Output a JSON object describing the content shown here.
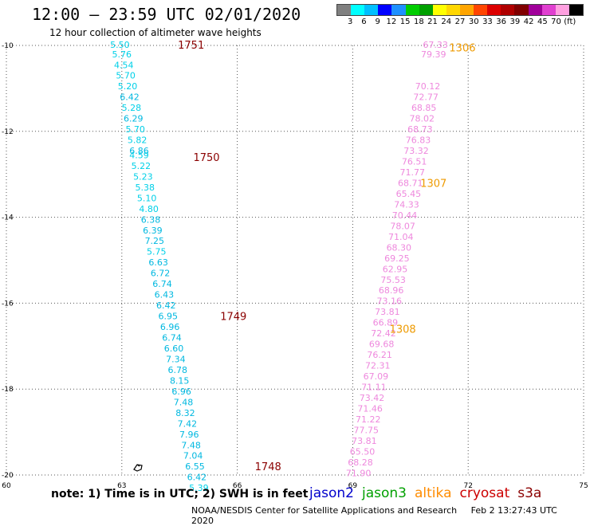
{
  "title": "12:00 — 23:59 UTC 02/01/2020",
  "subtitle": "12 hour collection of altimeter wave heights",
  "legend": {
    "colors": [
      "#808080",
      "#00ffff",
      "#00bfff",
      "#0000ff",
      "#1e90ff",
      "#00cd00",
      "#00a000",
      "#ffff00",
      "#ffd700",
      "#ffa500",
      "#ff4500",
      "#dc0000",
      "#b00000",
      "#800000",
      "#a0009a",
      "#e040d0",
      "#ffa0e0",
      "#000000"
    ],
    "labels": [
      "3",
      "6",
      "9",
      "12",
      "15",
      "18",
      "21",
      "24",
      "27",
      "30",
      "33",
      "36",
      "39",
      "42",
      "45",
      "70",
      "(ft)"
    ]
  },
  "note": "note: 1) Time is in UTC; 2) SWH is in feet",
  "missions": [
    {
      "name": "jason2",
      "color": "#0000cc"
    },
    {
      "name": "jason3",
      "color": "#00a000"
    },
    {
      "name": "altika",
      "color": "#ff8c00"
    },
    {
      "name": "cryosat",
      "color": "#cc0000"
    },
    {
      "name": "s3a",
      "color": "#8b0000"
    }
  ],
  "footer": {
    "agency": "NOAA/NESDIS Center for Satellite Applications and Research",
    "timestamp": "Feb  2 13:27:43 UTC 2020"
  },
  "chart_data": {
    "type": "scatter",
    "xlim": [
      60,
      75
    ],
    "ylim": [
      -20,
      -10
    ],
    "x_ticks": [
      60,
      63,
      66,
      69,
      72,
      75
    ],
    "y_ticks": [
      -10,
      -12,
      -14,
      -16,
      -18,
      -20
    ],
    "grid": true,
    "series": [
      {
        "points": [
          {
            "x": 62.95,
            "y": -9.98,
            "label": "5.50",
            "color": "#00d0e8"
          },
          {
            "x": 63.0,
            "y": -10.2,
            "label": "5.76",
            "color": "#00d0e8"
          },
          {
            "x": 63.05,
            "y": -10.45,
            "label": "4.54",
            "color": "#00d0e8"
          },
          {
            "x": 63.1,
            "y": -10.7,
            "label": "5.70",
            "color": "#00d0e8"
          },
          {
            "x": 63.15,
            "y": -10.95,
            "label": "5.20",
            "color": "#00d0e8"
          },
          {
            "x": 63.2,
            "y": -11.2,
            "label": "6.42",
            "color": "#00b8e0"
          },
          {
            "x": 63.25,
            "y": -11.45,
            "label": "5.28",
            "color": "#00d0e8"
          },
          {
            "x": 63.3,
            "y": -11.7,
            "label": "6.29",
            "color": "#00b8e0"
          },
          {
            "x": 63.35,
            "y": -11.95,
            "label": "5.70",
            "color": "#00d0e8"
          },
          {
            "x": 63.4,
            "y": -12.2,
            "label": "5.82",
            "color": "#00d0e8"
          },
          {
            "x": 63.45,
            "y": -12.45,
            "label": "6.86",
            "color": "#00b8e0"
          },
          {
            "x": 63.45,
            "y": -12.55,
            "label": "4.59",
            "color": "#00d0e8"
          },
          {
            "x": 63.5,
            "y": -12.8,
            "label": "5.22",
            "color": "#00d0e8"
          },
          {
            "x": 63.55,
            "y": -13.05,
            "label": "5.23",
            "color": "#00d0e8"
          },
          {
            "x": 63.6,
            "y": -13.3,
            "label": "5.38",
            "color": "#00d0e8"
          },
          {
            "x": 63.65,
            "y": -13.55,
            "label": "5.10",
            "color": "#00d0e8"
          },
          {
            "x": 63.7,
            "y": -13.8,
            "label": "4.80",
            "color": "#00d0e8"
          },
          {
            "x": 63.75,
            "y": -14.05,
            "label": "6.38",
            "color": "#00b8e0"
          },
          {
            "x": 63.8,
            "y": -14.3,
            "label": "6.39",
            "color": "#00b8e0"
          },
          {
            "x": 63.85,
            "y": -14.55,
            "label": "7.25",
            "color": "#00b8e0"
          },
          {
            "x": 63.9,
            "y": -14.8,
            "label": "5.75",
            "color": "#00d0e8"
          },
          {
            "x": 63.95,
            "y": -15.05,
            "label": "6.63",
            "color": "#00b8e0"
          },
          {
            "x": 64.0,
            "y": -15.3,
            "label": "6.72",
            "color": "#00b8e0"
          },
          {
            "x": 64.05,
            "y": -15.55,
            "label": "6.74",
            "color": "#00b8e0"
          },
          {
            "x": 64.1,
            "y": -15.8,
            "label": "6.43",
            "color": "#00b8e0"
          },
          {
            "x": 64.15,
            "y": -16.05,
            "label": "6.42",
            "color": "#00b8e0"
          },
          {
            "x": 64.2,
            "y": -16.3,
            "label": "6.95",
            "color": "#00b8e0"
          },
          {
            "x": 64.25,
            "y": -16.55,
            "label": "6.96",
            "color": "#00b8e0"
          },
          {
            "x": 64.3,
            "y": -16.8,
            "label": "6.74",
            "color": "#00b8e0"
          },
          {
            "x": 64.35,
            "y": -17.05,
            "label": "6.60",
            "color": "#00b8e0"
          },
          {
            "x": 64.4,
            "y": -17.3,
            "label": "7.34",
            "color": "#00b8e0"
          },
          {
            "x": 64.45,
            "y": -17.55,
            "label": "6.78",
            "color": "#00b8e0"
          },
          {
            "x": 64.5,
            "y": -17.8,
            "label": "8.15",
            "color": "#00b8e0"
          },
          {
            "x": 64.55,
            "y": -18.05,
            "label": "6.96",
            "color": "#00b8e0"
          },
          {
            "x": 64.6,
            "y": -18.3,
            "label": "7.48",
            "color": "#00b8e0"
          },
          {
            "x": 64.65,
            "y": -18.55,
            "label": "8.32",
            "color": "#00b8e0"
          },
          {
            "x": 64.7,
            "y": -18.8,
            "label": "7.42",
            "color": "#00b8e0"
          },
          {
            "x": 64.75,
            "y": -19.05,
            "label": "7.96",
            "color": "#00b8e0"
          },
          {
            "x": 64.8,
            "y": -19.3,
            "label": "7.48",
            "color": "#00b8e0"
          },
          {
            "x": 64.85,
            "y": -19.55,
            "label": "7.04",
            "color": "#00b8e0"
          },
          {
            "x": 64.9,
            "y": -19.8,
            "label": "6.55",
            "color": "#00b8e0"
          },
          {
            "x": 64.95,
            "y": -20.05,
            "label": "6.42",
            "color": "#00b8e0"
          },
          {
            "x": 65.0,
            "y": -20.3,
            "label": "5.39",
            "color": "#00d0e8"
          }
        ]
      },
      {
        "points": [
          {
            "x": 71.15,
            "y": -9.98,
            "label": "67.33",
            "color": "#ee88dd"
          },
          {
            "x": 71.1,
            "y": -10.2,
            "label": "79.39",
            "color": "#ee88dd"
          },
          {
            "x": 70.95,
            "y": -10.95,
            "label": "70.12",
            "color": "#ee88dd"
          },
          {
            "x": 70.9,
            "y": -11.2,
            "label": "72.77",
            "color": "#ee88dd"
          },
          {
            "x": 70.85,
            "y": -11.45,
            "label": "68.85",
            "color": "#ee88dd"
          },
          {
            "x": 70.8,
            "y": -11.7,
            "label": "78.02",
            "color": "#ee88dd"
          },
          {
            "x": 70.75,
            "y": -11.95,
            "label": "68.73",
            "color": "#ee88dd"
          },
          {
            "x": 70.7,
            "y": -12.2,
            "label": "76.83",
            "color": "#ee88dd"
          },
          {
            "x": 70.65,
            "y": -12.45,
            "label": "73.32",
            "color": "#ee88dd"
          },
          {
            "x": 70.6,
            "y": -12.7,
            "label": "76.51",
            "color": "#ee88dd"
          },
          {
            "x": 70.55,
            "y": -12.95,
            "label": "71.77",
            "color": "#ee88dd"
          },
          {
            "x": 70.5,
            "y": -13.2,
            "label": "68.71",
            "color": "#ee88dd"
          },
          {
            "x": 70.45,
            "y": -13.45,
            "label": "65.45",
            "color": "#ee88dd"
          },
          {
            "x": 70.4,
            "y": -13.7,
            "label": "74.33",
            "color": "#ee88dd"
          },
          {
            "x": 70.35,
            "y": -13.95,
            "label": "70.44",
            "color": "#ee88dd"
          },
          {
            "x": 70.3,
            "y": -14.2,
            "label": "78.07",
            "color": "#ee88dd"
          },
          {
            "x": 70.25,
            "y": -14.45,
            "label": "71.04",
            "color": "#ee88dd"
          },
          {
            "x": 70.2,
            "y": -14.7,
            "label": "68.30",
            "color": "#ee88dd"
          },
          {
            "x": 70.15,
            "y": -14.95,
            "label": "69.25",
            "color": "#ee88dd"
          },
          {
            "x": 70.1,
            "y": -15.2,
            "label": "62.95",
            "color": "#ee88dd"
          },
          {
            "x": 70.05,
            "y": -15.45,
            "label": "75.53",
            "color": "#ee88dd"
          },
          {
            "x": 70.0,
            "y": -15.7,
            "label": "68.96",
            "color": "#ee88dd"
          },
          {
            "x": 69.95,
            "y": -15.95,
            "label": "73.16",
            "color": "#ee88dd"
          },
          {
            "x": 69.9,
            "y": -16.2,
            "label": "73.81",
            "color": "#ee88dd"
          },
          {
            "x": 69.85,
            "y": -16.45,
            "label": "66.89",
            "color": "#ee88dd"
          },
          {
            "x": 69.8,
            "y": -16.7,
            "label": "72.42",
            "color": "#ee88dd"
          },
          {
            "x": 69.75,
            "y": -16.95,
            "label": "69.68",
            "color": "#ee88dd"
          },
          {
            "x": 69.7,
            "y": -17.2,
            "label": "76.21",
            "color": "#ee88dd"
          },
          {
            "x": 69.65,
            "y": -17.45,
            "label": "72.31",
            "color": "#ee88dd"
          },
          {
            "x": 69.6,
            "y": -17.7,
            "label": "67.09",
            "color": "#ee88dd"
          },
          {
            "x": 69.55,
            "y": -17.95,
            "label": "71.11",
            "color": "#ee88dd"
          },
          {
            "x": 69.5,
            "y": -18.2,
            "label": "73.42",
            "color": "#ee88dd"
          },
          {
            "x": 69.45,
            "y": -18.45,
            "label": "71.46",
            "color": "#ee88dd"
          },
          {
            "x": 69.4,
            "y": -18.7,
            "label": "71.22",
            "color": "#ee88dd"
          },
          {
            "x": 69.35,
            "y": -18.95,
            "label": "77.75",
            "color": "#ee88dd"
          },
          {
            "x": 69.3,
            "y": -19.2,
            "label": "73.81",
            "color": "#ee88dd"
          },
          {
            "x": 69.25,
            "y": -19.45,
            "label": "65.50",
            "color": "#ee88dd"
          },
          {
            "x": 69.2,
            "y": -19.7,
            "label": "68.28",
            "color": "#ee88dd"
          },
          {
            "x": 69.15,
            "y": -19.95,
            "label": "71.90",
            "color": "#ee88dd"
          }
        ]
      }
    ],
    "pass_labels": [
      {
        "x": 64.8,
        "y": -9.98,
        "label": "1751",
        "color": "#8b0000"
      },
      {
        "x": 65.2,
        "y": -12.6,
        "label": "1750",
        "color": "#8b0000"
      },
      {
        "x": 65.9,
        "y": -16.3,
        "label": "1749",
        "color": "#8b0000"
      },
      {
        "x": 66.8,
        "y": -19.8,
        "label": "1748",
        "color": "#8b0000"
      },
      {
        "x": 71.85,
        "y": -10.05,
        "label": "1306",
        "color": "#ee9a00"
      },
      {
        "x": 71.1,
        "y": -13.2,
        "label": "1307",
        "color": "#ee9a00"
      },
      {
        "x": 70.3,
        "y": -16.6,
        "label": "1308",
        "color": "#ee9a00"
      }
    ]
  }
}
